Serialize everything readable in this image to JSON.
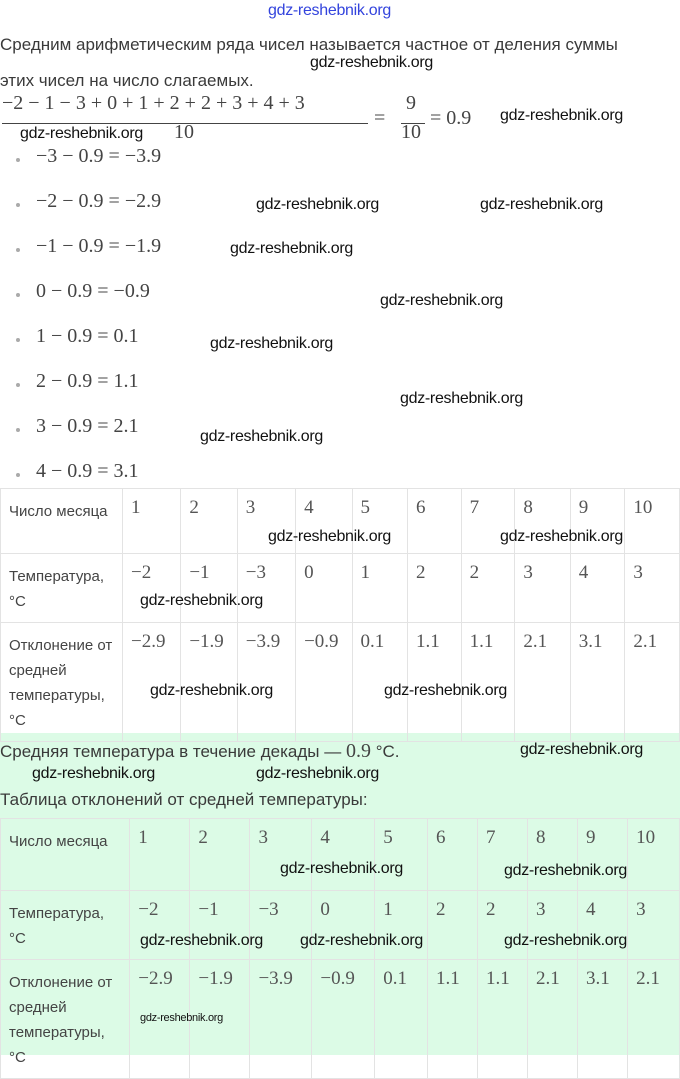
{
  "watermark": "gdz-reshebnik.org",
  "intro": {
    "line1": "Средним арифметическим ряда чисел называется частное от деления суммы",
    "line2": "этих чисел на число слагаемых."
  },
  "formula": {
    "numerator": "−2 − 1 − 3 + 0 + 1 + 2 + 2 + 3 + 4 + 3",
    "denominator": "10",
    "eq1": "=",
    "frac_num": "9",
    "frac_den": "10",
    "result": "= 0.9"
  },
  "deviations": [
    "−3 − 0.9 = −3.9",
    "−2 − 0.9 = −2.9",
    "−1 − 0.9 = −1.9",
    "0 − 0.9 = −0.9",
    "1 − 0.9 = 0.1",
    "2 − 0.9 = 1.1",
    "3 − 0.9 = 2.1",
    "4 − 0.9 = 3.1"
  ],
  "table1": {
    "rows": [
      {
        "label": "Число месяца",
        "values": [
          "1",
          "2",
          "3",
          "4",
          "5",
          "6",
          "7",
          "8",
          "9",
          "10"
        ]
      },
      {
        "label": "Температура, °C",
        "values": [
          "−2",
          "−1",
          "−3",
          "0",
          "1",
          "2",
          "2",
          "3",
          "4",
          "3"
        ]
      },
      {
        "label": "Отклонение от средней температуры, °C",
        "values": [
          "−2.9",
          "−1.9",
          "−3.9",
          "−0.9",
          "0.1",
          "1.1",
          "1.1",
          "2.1",
          "3.1",
          "2.1"
        ]
      }
    ]
  },
  "summary": {
    "text": "Средняя температура в течение декады —",
    "value": "0.9",
    "unit": "°C."
  },
  "table2_title": "Таблица отклонений от средней температуры:",
  "table2": {
    "rows": [
      {
        "label": "Число месяца",
        "values": [
          "1",
          "2",
          "3",
          "4",
          "5",
          "6",
          "7",
          "8",
          "9",
          "10"
        ]
      },
      {
        "label": "Температура, °C",
        "values": [
          "−2",
          "−1",
          "−3",
          "0",
          "1",
          "2",
          "2",
          "3",
          "4",
          "3"
        ]
      },
      {
        "label": "Отклонение от средней температуры, °C",
        "values": [
          "−2.9",
          "−1.9",
          "−3.9",
          "−0.9",
          "0.1",
          "1.1",
          "1.1",
          "2.1",
          "3.1",
          "2.1"
        ]
      }
    ]
  },
  "colors": {
    "highlight_bg": "#dcfbe6",
    "top_watermark": "#3344dd"
  }
}
